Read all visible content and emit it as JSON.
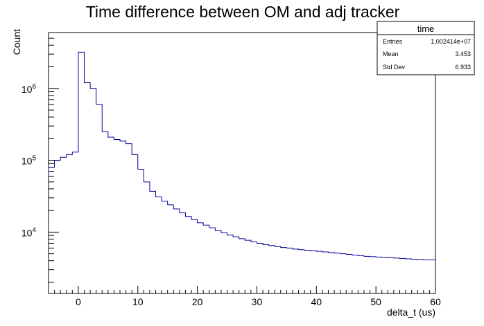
{
  "chart_data": {
    "type": "histogram",
    "title": "Time difference between OM and adj tracker",
    "xlabel": "delta_t (us)",
    "ylabel": "Count",
    "yscale": "log",
    "xlim": [
      -5,
      60
    ],
    "ylim": [
      1400,
      6000000
    ],
    "grid": false,
    "x_ticks": [
      0,
      10,
      20,
      30,
      40,
      50,
      60
    ],
    "y_ticks": [
      {
        "value": 10000,
        "base": "10",
        "exp": "4"
      },
      {
        "value": 100000,
        "base": "10",
        "exp": "5"
      },
      {
        "value": 1000000,
        "base": "10",
        "exp": "6"
      }
    ],
    "line_color": "#000099",
    "bin_width": 1,
    "bin_start": -5,
    "counts": [
      80000,
      100000,
      110000,
      120000,
      130000,
      3200000,
      1200000,
      1000000,
      600000,
      250000,
      210000,
      195000,
      185000,
      170000,
      120000,
      75000,
      50000,
      37000,
      31000,
      27000,
      24000,
      21000,
      18500,
      16500,
      15000,
      13500,
      12500,
      11500,
      10500,
      9800,
      9100,
      8600,
      8100,
      7700,
      7300,
      7000,
      6700,
      6500,
      6300,
      6100,
      6000,
      5800,
      5700,
      5600,
      5500,
      5400,
      5300,
      5200,
      5100,
      5000,
      4900,
      4800,
      4700,
      4600,
      4550,
      4500,
      4450,
      4400,
      4350,
      4300,
      4250,
      4200,
      4150,
      4100,
      4100
    ],
    "first_bin_low_edge_value": 60000,
    "stats_box": {
      "name": "time",
      "rows": [
        {
          "label": "Entries",
          "value": "1.002414e+07"
        },
        {
          "label": "Mean",
          "value": "3.453"
        },
        {
          "label": "Std Dev",
          "value": "6.933"
        }
      ]
    }
  }
}
